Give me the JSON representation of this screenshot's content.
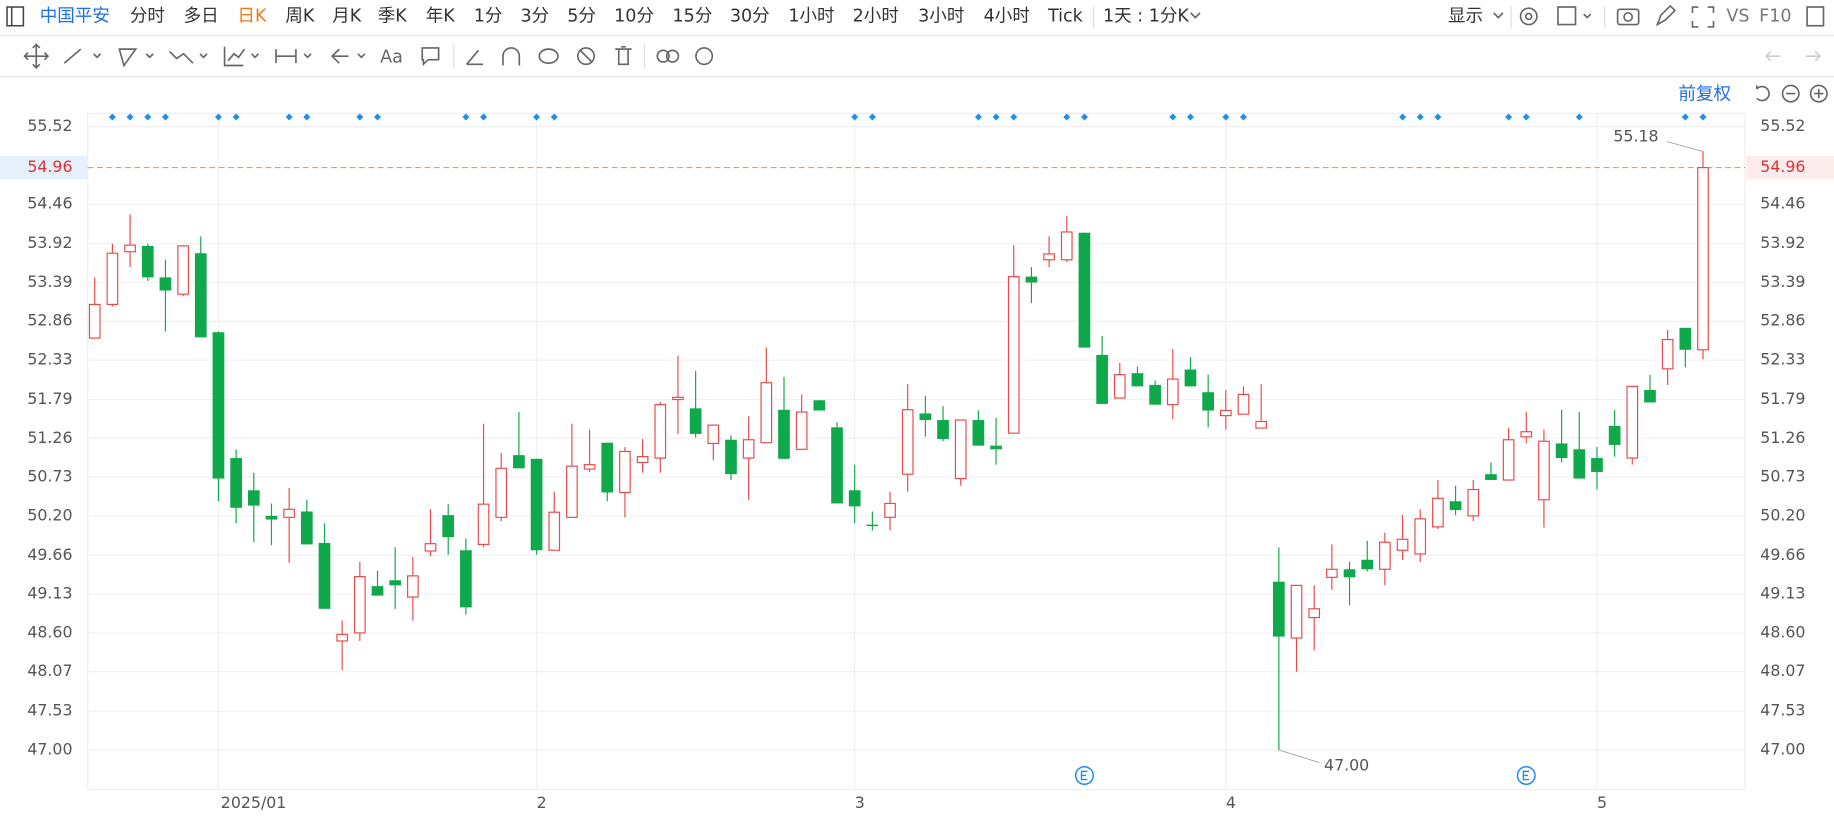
{
  "toolbar": {
    "stock": "中国平安",
    "periods": [
      "分时",
      "多日",
      "日K",
      "周K",
      "月K",
      "季K",
      "年K",
      "1分",
      "3分",
      "5分",
      "10分",
      "15分",
      "30分",
      "1小时",
      "2小时",
      "3小时",
      "4小时",
      "Tick"
    ],
    "interval": "1天 : 1分K",
    "display": "显示",
    "vs": "VS",
    "f10": "F10",
    "font_tool": "Aa",
    "adjust": "前复权"
  },
  "chart_data": {
    "type": "candlestick",
    "categories": [
      null,
      null,
      null,
      null,
      null,
      null,
      null,
      "2025/01",
      null,
      null,
      null,
      null,
      null,
      null,
      null,
      null,
      null,
      null,
      null,
      null,
      null,
      null,
      null,
      null,
      null,
      "2",
      null,
      null,
      null,
      null,
      null,
      null,
      null,
      null,
      null,
      null,
      null,
      null,
      null,
      null,
      null,
      null,
      null,
      "3",
      null,
      null,
      null,
      null,
      null,
      null,
      null,
      null,
      null,
      null,
      null,
      null,
      null,
      null,
      null,
      null,
      null,
      null,
      null,
      null,
      "4",
      null,
      null,
      null,
      null,
      null,
      null,
      null,
      null,
      null,
      null,
      null,
      null,
      null,
      null,
      null,
      null,
      null,
      null,
      null,
      null,
      "5",
      null,
      null,
      null,
      null,
      null,
      null
    ],
    "open": [
      52.63,
      53.09,
      53.81,
      53.89,
      53.46,
      53.23,
      53.79,
      52.71,
      50.99,
      50.55,
      50.2,
      50.18,
      50.26,
      49.83,
      48.49,
      48.6,
      49.24,
      49.32,
      49.09,
      49.72,
      50.21,
      49.73,
      49.81,
      50.18,
      51.03,
      50.98,
      49.73,
      50.18,
      50.84,
      51.2,
      50.52,
      50.93,
      50.99,
      51.79,
      51.67,
      51.19,
      51.24,
      50.99,
      51.2,
      51.65,
      51.11,
      51.78,
      51.41,
      50.55,
      50.08,
      50.18,
      50.77,
      51.6,
      51.51,
      50.71,
      51.51,
      51.16,
      51.33,
      53.47,
      53.7,
      53.7,
      54.07,
      52.4,
      51.81,
      52.15,
      51.99,
      51.72,
      52.2,
      51.89,
      51.57,
      51.59,
      51.4,
      49.3,
      48.53,
      48.81,
      49.36,
      49.47,
      49.6,
      49.47,
      49.73,
      49.68,
      50.05,
      50.4,
      50.2,
      50.77,
      50.69,
      51.28,
      50.42,
      51.19,
      51.11,
      50.99,
      51.43,
      50.99,
      51.92,
      52.21,
      52.77,
      52.47
    ],
    "high": [
      53.46,
      53.92,
      54.32,
      53.92,
      53.7,
      53.9,
      54.02,
      52.72,
      51.11,
      50.79,
      50.37,
      50.58,
      50.42,
      50.1,
      48.77,
      49.57,
      49.45,
      49.77,
      49.64,
      50.29,
      50.36,
      49.89,
      51.46,
      51.06,
      51.62,
      50.98,
      50.53,
      51.46,
      51.38,
      51.2,
      51.14,
      51.25,
      51.76,
      52.39,
      52.18,
      51.44,
      51.3,
      51.56,
      52.5,
      52.1,
      51.86,
      51.78,
      51.48,
      50.9,
      50.26,
      50.53,
      52.0,
      51.84,
      51.7,
      51.51,
      51.64,
      51.54,
      53.9,
      53.6,
      54.02,
      54.3,
      54.07,
      52.66,
      52.29,
      52.24,
      52.05,
      52.48,
      52.37,
      52.13,
      51.92,
      51.97,
      52.0,
      49.77,
      49.25,
      49.25,
      49.81,
      49.57,
      49.86,
      49.97,
      50.21,
      50.29,
      50.69,
      50.61,
      50.69,
      50.93,
      51.4,
      51.62,
      51.38,
      51.65,
      51.62,
      51.14,
      51.65,
      51.97,
      52.13,
      52.74,
      52.77,
      55.18
    ],
    "low": [
      52.63,
      53.06,
      53.6,
      53.41,
      52.72,
      53.2,
      52.64,
      50.4,
      50.1,
      49.84,
      49.8,
      49.56,
      49.81,
      48.93,
      48.09,
      48.49,
      49.11,
      48.93,
      48.77,
      49.65,
      49.67,
      48.85,
      49.77,
      50.13,
      50.85,
      49.67,
      49.73,
      50.18,
      50.8,
      50.4,
      50.18,
      50.79,
      50.79,
      51.32,
      51.27,
      50.96,
      50.69,
      50.42,
      51.2,
      50.98,
      51.11,
      51.64,
      50.37,
      50.1,
      50.0,
      50.0,
      50.53,
      51.28,
      51.22,
      50.61,
      51.16,
      50.9,
      51.33,
      53.11,
      53.6,
      53.67,
      52.5,
      51.73,
      51.81,
      51.97,
      51.72,
      51.52,
      51.97,
      51.41,
      51.38,
      51.59,
      51.4,
      47.0,
      48.07,
      48.36,
      49.19,
      48.98,
      49.44,
      49.25,
      49.6,
      49.57,
      50.02,
      50.21,
      50.13,
      50.69,
      50.69,
      51.19,
      50.04,
      50.93,
      50.71,
      50.56,
      51.01,
      50.9,
      51.75,
      51.99,
      52.23,
      52.34
    ],
    "close": [
      53.09,
      53.79,
      53.9,
      53.46,
      53.28,
      53.89,
      52.64,
      50.71,
      50.31,
      50.34,
      50.15,
      50.29,
      49.81,
      48.93,
      48.58,
      49.37,
      49.11,
      49.25,
      49.38,
      49.82,
      49.91,
      48.95,
      50.36,
      50.85,
      50.85,
      49.73,
      50.25,
      50.88,
      50.9,
      50.52,
      51.08,
      51.01,
      51.72,
      51.82,
      51.32,
      51.44,
      50.77,
      51.24,
      52.02,
      50.98,
      51.62,
      51.64,
      50.37,
      50.33,
      50.06,
      50.37,
      51.65,
      51.51,
      51.25,
      51.51,
      51.16,
      51.11,
      53.47,
      53.39,
      53.78,
      54.08,
      52.5,
      51.73,
      52.13,
      51.97,
      51.72,
      52.07,
      51.97,
      51.64,
      51.64,
      51.86,
      51.49,
      48.55,
      49.25,
      48.93,
      49.47,
      49.36,
      49.47,
      49.84,
      49.88,
      50.16,
      50.44,
      50.28,
      50.56,
      50.69,
      51.24,
      51.35,
      51.22,
      50.99,
      50.71,
      50.8,
      51.17,
      51.97,
      51.75,
      52.61,
      52.47,
      54.96
    ],
    "up_color": "#e84a4a",
    "down_color": "#0fa84b",
    "ylim": [
      46.46,
      55.7
    ],
    "yticks": [
      {
        "value": 47,
        "label": "47.00"
      },
      47.53,
      48.07,
      {
        "value": 48.6,
        "label": "48.60"
      },
      49.13,
      49.66,
      {
        "value": 50.2,
        "label": "50.20"
      },
      50.73,
      51.26,
      51.79,
      52.33,
      52.86,
      53.39,
      53.92,
      54.46,
      55.52
    ],
    "grid": true,
    "last_price": 54.96,
    "annotations": [
      {
        "value": 55.18,
        "label": "55.18"
      },
      {
        "value": 47,
        "label": "47.00"
      }
    ]
  }
}
